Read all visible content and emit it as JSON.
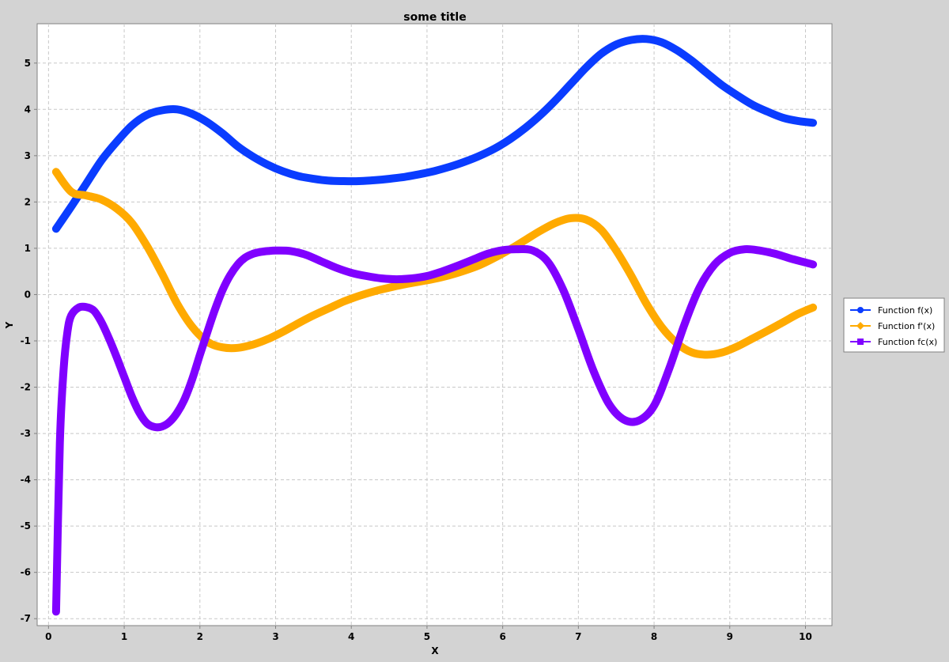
{
  "chart_data": {
    "type": "line",
    "title": "some title",
    "xlabel": "X",
    "ylabel": "Y",
    "xlim": [
      -0.15,
      10.35
    ],
    "ylim": [
      -7.15,
      5.85
    ],
    "xticks": [
      0,
      1,
      2,
      3,
      4,
      5,
      6,
      7,
      8,
      9,
      10
    ],
    "yticks": [
      -7,
      -6,
      -5,
      -4,
      -3,
      -2,
      -1,
      0,
      1,
      2,
      3,
      4,
      5
    ],
    "grid": true,
    "legend_position": "right",
    "series": [
      {
        "name": "Function f(x)",
        "color": "#0a3cff",
        "marker": "circle",
        "x": [
          0.1,
          0.3,
          0.5,
          0.7,
          0.9,
          1.1,
          1.3,
          1.5,
          1.7,
          1.9,
          2.1,
          2.3,
          2.5,
          2.7,
          2.9,
          3.1,
          3.3,
          3.5,
          3.7,
          3.9,
          4.1,
          4.3,
          4.5,
          4.7,
          4.9,
          5.1,
          5.3,
          5.5,
          5.7,
          5.9,
          6.1,
          6.3,
          6.5,
          6.7,
          6.9,
          7.1,
          7.3,
          7.5,
          7.7,
          7.9,
          8.1,
          8.3,
          8.5,
          8.7,
          8.9,
          9.1,
          9.3,
          9.5,
          9.7,
          9.9,
          10.1
        ],
        "y": [
          1.42,
          1.9,
          2.4,
          2.9,
          3.3,
          3.65,
          3.88,
          3.98,
          4.0,
          3.9,
          3.72,
          3.48,
          3.2,
          2.98,
          2.8,
          2.66,
          2.56,
          2.5,
          2.46,
          2.45,
          2.45,
          2.47,
          2.5,
          2.54,
          2.6,
          2.67,
          2.76,
          2.87,
          3.0,
          3.16,
          3.36,
          3.6,
          3.88,
          4.2,
          4.55,
          4.9,
          5.2,
          5.4,
          5.5,
          5.52,
          5.45,
          5.28,
          5.05,
          4.78,
          4.52,
          4.3,
          4.1,
          3.95,
          3.82,
          3.75,
          3.71
        ]
      },
      {
        "name": "Function f'(x)",
        "color": "#ffaa00",
        "marker": "diamond",
        "x": [
          0.1,
          0.3,
          0.5,
          0.7,
          0.9,
          1.1,
          1.3,
          1.5,
          1.7,
          1.9,
          2.1,
          2.3,
          2.5,
          2.7,
          2.9,
          3.1,
          3.3,
          3.5,
          3.7,
          3.9,
          4.1,
          4.3,
          4.5,
          4.7,
          4.9,
          5.1,
          5.3,
          5.5,
          5.7,
          5.9,
          6.1,
          6.3,
          6.5,
          6.7,
          6.9,
          7.1,
          7.3,
          7.5,
          7.7,
          7.9,
          8.1,
          8.3,
          8.5,
          8.7,
          8.9,
          9.1,
          9.3,
          9.5,
          9.7,
          9.9,
          10.1
        ],
        "y": [
          2.65,
          2.22,
          2.14,
          2.05,
          1.86,
          1.55,
          1.05,
          0.45,
          -0.2,
          -0.7,
          -1.02,
          -1.14,
          -1.15,
          -1.08,
          -0.96,
          -0.8,
          -0.62,
          -0.45,
          -0.3,
          -0.15,
          -0.03,
          0.07,
          0.15,
          0.22,
          0.28,
          0.34,
          0.42,
          0.52,
          0.64,
          0.8,
          0.98,
          1.18,
          1.38,
          1.55,
          1.65,
          1.62,
          1.4,
          0.95,
          0.4,
          -0.2,
          -0.7,
          -1.05,
          -1.25,
          -1.3,
          -1.25,
          -1.12,
          -0.95,
          -0.78,
          -0.6,
          -0.42,
          -0.28
        ]
      },
      {
        "name": "Function fc(x)",
        "color": "#8000ff",
        "marker": "square",
        "x": [
          0.1,
          0.15,
          0.2,
          0.25,
          0.3,
          0.4,
          0.5,
          0.6,
          0.7,
          0.8,
          0.9,
          1.0,
          1.1,
          1.2,
          1.3,
          1.4,
          1.5,
          1.6,
          1.7,
          1.8,
          1.9,
          2.0,
          2.1,
          2.2,
          2.3,
          2.4,
          2.5,
          2.6,
          2.7,
          2.8,
          2.9,
          3.0,
          3.2,
          3.4,
          3.6,
          3.8,
          4.0,
          4.2,
          4.4,
          4.6,
          4.8,
          5.0,
          5.2,
          5.4,
          5.6,
          5.8,
          6.0,
          6.2,
          6.4,
          6.6,
          6.8,
          7.0,
          7.2,
          7.4,
          7.6,
          7.8,
          8.0,
          8.2,
          8.4,
          8.6,
          8.8,
          9.0,
          9.2,
          9.4,
          9.6,
          9.8,
          10.1
        ],
        "y": [
          -6.85,
          -3.2,
          -1.6,
          -0.8,
          -0.45,
          -0.28,
          -0.27,
          -0.35,
          -0.6,
          -0.95,
          -1.35,
          -1.78,
          -2.2,
          -2.55,
          -2.78,
          -2.86,
          -2.85,
          -2.75,
          -2.55,
          -2.25,
          -1.82,
          -1.3,
          -0.8,
          -0.32,
          0.1,
          0.42,
          0.65,
          0.8,
          0.88,
          0.92,
          0.94,
          0.95,
          0.94,
          0.86,
          0.72,
          0.58,
          0.47,
          0.4,
          0.35,
          0.33,
          0.35,
          0.4,
          0.5,
          0.62,
          0.75,
          0.88,
          0.96,
          0.98,
          0.95,
          0.7,
          0.1,
          -0.75,
          -1.65,
          -2.35,
          -2.7,
          -2.72,
          -2.4,
          -1.6,
          -0.65,
          0.15,
          0.65,
          0.9,
          0.98,
          0.95,
          0.88,
          0.78,
          0.65
        ]
      }
    ]
  }
}
